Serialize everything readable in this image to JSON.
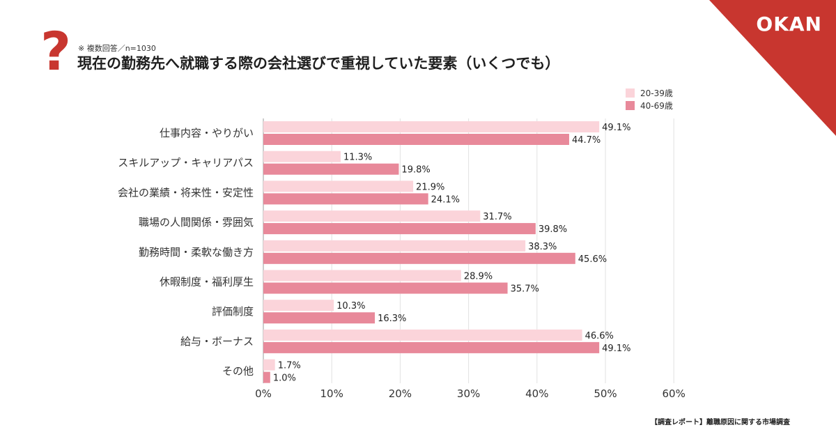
{
  "brand": {
    "logo_text": "OKAN",
    "corner_color": "#c8362f"
  },
  "header": {
    "icon": "question-mark-icon",
    "icon_glyph": "?",
    "note": "※ 複数回答／n=1030",
    "title": "現在の勤務先へ就職する際の会社選びで重視していた要素（いくつでも）"
  },
  "footer": {
    "source": "【調査レポート】離職原因に関する市場調査"
  },
  "chart_data": {
    "type": "bar",
    "orientation": "horizontal",
    "categories": [
      "仕事内容・やりがい",
      "スキルアップ・キャリアパス",
      "会社の業績・将来性・安定性",
      "職場の人間関係・雰囲気",
      "勤務時間・柔軟な働き方",
      "休暇制度・福利厚生",
      "評価制度",
      "給与・ボーナス",
      "その他"
    ],
    "series": [
      {
        "name": "20-39歳",
        "color": "#fbd4da",
        "values": [
          49.1,
          11.3,
          21.9,
          31.7,
          38.3,
          28.9,
          10.3,
          46.6,
          1.7
        ]
      },
      {
        "name": "40-69歳",
        "color": "#e8899a",
        "values": [
          44.7,
          19.8,
          24.1,
          39.8,
          45.6,
          35.7,
          16.3,
          49.1,
          1.0
        ]
      }
    ],
    "xlim": [
      0,
      60
    ],
    "xticks": [
      0,
      10,
      20,
      30,
      40,
      50,
      60
    ],
    "tick_suffix": "%",
    "value_suffix": "%",
    "grid": true,
    "legend_position": "top-right"
  }
}
